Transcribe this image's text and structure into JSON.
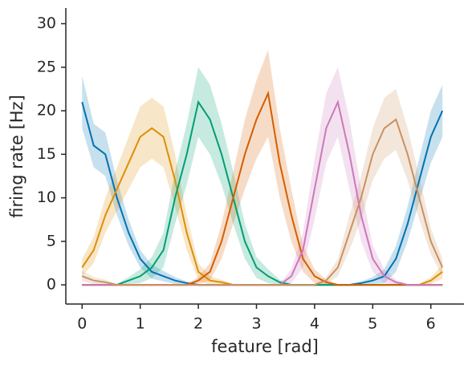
{
  "chart_data": {
    "type": "line",
    "xlabel": "feature [rad]",
    "ylabel": "firing rate [Hz]",
    "x": [
      0,
      0.2,
      0.4,
      0.6,
      0.8,
      1.0,
      1.2,
      1.4,
      1.6,
      1.8,
      2.0,
      2.2,
      2.4,
      2.6,
      2.8,
      3.0,
      3.2,
      3.4,
      3.6,
      3.8,
      4.0,
      4.2,
      4.4,
      4.6,
      4.8,
      5.0,
      5.2,
      5.4,
      5.6,
      5.8,
      6.0,
      6.2
    ],
    "xlim": [
      -0.28,
      6.57
    ],
    "ylim": [
      -2.2,
      31.8
    ],
    "xticks": [
      0,
      1,
      2,
      3,
      4,
      5,
      6
    ],
    "yticks": [
      0,
      5,
      10,
      15,
      20,
      25,
      30
    ],
    "series": [
      {
        "color": "#0173b2",
        "values": [
          21,
          16,
          15,
          10,
          6,
          3,
          1.5,
          1,
          0.5,
          0.2,
          0,
          0,
          0,
          0,
          0,
          0,
          0,
          0,
          0,
          0,
          0,
          0,
          0,
          0,
          0.2,
          0.5,
          1,
          3,
          7,
          12,
          17,
          20
        ],
        "ci": [
          3,
          2.5,
          2.5,
          2,
          1.5,
          1,
          0.8,
          0.6,
          0.4,
          0.2,
          0.1,
          0.1,
          0.1,
          0.1,
          0.1,
          0.1,
          0.1,
          0.1,
          0.1,
          0.1,
          0.1,
          0.1,
          0.1,
          0.1,
          0.2,
          0.4,
          0.8,
          1.5,
          2,
          2.5,
          3,
          3
        ]
      },
      {
        "color": "#de8f05",
        "values": [
          2,
          4,
          8,
          11,
          14,
          17,
          18,
          17,
          12,
          6,
          1.5,
          0.5,
          0.3,
          0,
          0,
          0,
          0,
          0,
          0,
          0,
          0,
          0,
          0,
          0,
          0,
          0,
          0,
          0,
          0,
          0,
          0.5,
          1.5
        ],
        "ci": [
          1,
          1.5,
          2,
          2.5,
          3,
          3.5,
          3.5,
          3.5,
          3,
          2,
          1,
          0.5,
          0.3,
          0.1,
          0.1,
          0.1,
          0.1,
          0.1,
          0.1,
          0.1,
          0.1,
          0.1,
          0.1,
          0.1,
          0.1,
          0.1,
          0.1,
          0.1,
          0.1,
          0.1,
          0.4,
          0.8
        ]
      },
      {
        "color": "#029e73",
        "values": [
          0,
          0,
          0,
          0,
          0.5,
          1,
          2,
          4,
          10,
          15,
          21,
          19,
          15,
          10,
          5,
          2,
          1,
          0.3,
          0,
          0,
          0,
          0,
          0,
          0,
          0,
          0,
          0,
          0,
          0,
          0,
          0,
          0
        ],
        "ci": [
          0.1,
          0.1,
          0.1,
          0.1,
          0.4,
          0.8,
          1.2,
          2,
          3,
          3.5,
          4,
          4,
          3.5,
          3,
          2,
          1.2,
          0.8,
          0.3,
          0.1,
          0.1,
          0.1,
          0.1,
          0.1,
          0.1,
          0.1,
          0.1,
          0.1,
          0.1,
          0.1,
          0.1,
          0.1,
          0.1
        ]
      },
      {
        "color": "#d55e00",
        "values": [
          0,
          0,
          0,
          0,
          0,
          0,
          0,
          0,
          0,
          0,
          0.5,
          1.5,
          5,
          10,
          15,
          19,
          22,
          14,
          8,
          3,
          1,
          0.3,
          0,
          0,
          0,
          0,
          0,
          0,
          0,
          0,
          0,
          0
        ],
        "ci": [
          0.1,
          0.1,
          0.1,
          0.1,
          0.1,
          0.1,
          0.1,
          0.1,
          0.1,
          0.1,
          0.4,
          1,
          2,
          3,
          4,
          4.5,
          5,
          4,
          3,
          1.5,
          0.8,
          0.3,
          0.1,
          0.1,
          0.1,
          0.1,
          0.1,
          0.1,
          0.1,
          0.1,
          0.1,
          0.1
        ]
      },
      {
        "color": "#cc78bc",
        "values": [
          0,
          0,
          0,
          0,
          0,
          0,
          0,
          0,
          0,
          0,
          0,
          0,
          0,
          0,
          0,
          0,
          0,
          0,
          1,
          4,
          11,
          18,
          21,
          15,
          8,
          3,
          1,
          0.3,
          0,
          0,
          0,
          0
        ],
        "ci": [
          0.1,
          0.1,
          0.1,
          0.1,
          0.1,
          0.1,
          0.1,
          0.1,
          0.1,
          0.1,
          0.1,
          0.1,
          0.1,
          0.1,
          0.1,
          0.1,
          0.1,
          0.1,
          0.8,
          2,
          3.5,
          4,
          4,
          4,
          3,
          1.5,
          0.8,
          0.3,
          0.1,
          0.1,
          0.1,
          0.1
        ]
      },
      {
        "color": "#ca9161",
        "values": [
          1,
          0.5,
          0.3,
          0,
          0,
          0,
          0,
          0,
          0,
          0,
          0,
          0,
          0,
          0,
          0,
          0,
          0,
          0,
          0,
          0,
          0,
          0.5,
          2,
          6,
          10,
          15,
          18,
          19,
          15,
          10,
          5,
          2
        ],
        "ci": [
          0.6,
          0.4,
          0.3,
          0.1,
          0.1,
          0.1,
          0.1,
          0.1,
          0.1,
          0.1,
          0.1,
          0.1,
          0.1,
          0.1,
          0.1,
          0.1,
          0.1,
          0.1,
          0.1,
          0.1,
          0.1,
          0.4,
          1,
          2,
          2.5,
          3,
          3.5,
          3.5,
          3,
          2.5,
          1.5,
          1
        ]
      }
    ]
  }
}
